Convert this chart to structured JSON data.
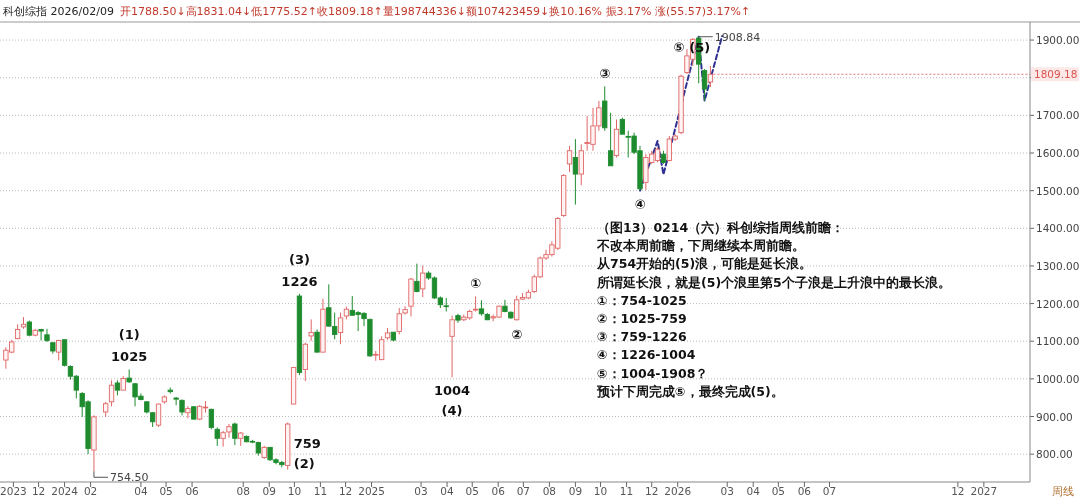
{
  "chart_data": {
    "type": "candlestick",
    "title": "科创综指 2026/02/09",
    "subtitle": "开1788.50↓高1831.04↓低1775.52↑收1809.18↑量198744336↓额107423459↓换10.16% 振3.17% 涨(55.57)3.17%↑",
    "xlabel": "周线",
    "x": [
      "2023-10-23",
      "2023-10-30",
      "2023-11-06",
      "2023-11-13",
      "2023-11-20",
      "2023-11-27",
      "2023-12-04",
      "2023-12-11",
      "2023-12-18",
      "2023-12-25",
      "2024-01-01",
      "2024-01-08",
      "2024-01-15",
      "2024-01-22",
      "2024-01-29",
      "2024-02-05",
      "2024-02-19",
      "2024-02-26",
      "2024-03-04",
      "2024-03-11",
      "2024-03-18",
      "2024-03-25",
      "2024-04-01",
      "2024-04-08",
      "2024-04-15",
      "2024-04-22",
      "2024-04-29",
      "2024-05-06",
      "2024-05-13",
      "2024-05-20",
      "2024-05-27",
      "2024-06-03",
      "2024-06-10",
      "2024-06-17",
      "2024-06-24",
      "2024-07-01",
      "2024-07-08",
      "2024-07-15",
      "2024-07-22",
      "2024-07-29",
      "2024-08-05",
      "2024-08-12",
      "2024-08-19",
      "2024-08-26",
      "2024-09-02",
      "2024-09-09",
      "2024-09-16",
      "2024-09-23",
      "2024-09-30",
      "2024-10-07",
      "2024-10-14",
      "2024-10-21",
      "2024-10-28",
      "2024-11-04",
      "2024-11-11",
      "2024-11-18",
      "2024-11-25",
      "2024-12-02",
      "2024-12-09",
      "2024-12-16",
      "2024-12-23",
      "2024-12-30",
      "2025-01-06",
      "2025-01-13",
      "2025-01-20",
      "2025-01-27",
      "2025-02-03",
      "2025-02-10",
      "2025-02-17",
      "2025-02-24",
      "2025-03-03",
      "2025-03-10",
      "2025-03-17",
      "2025-03-24",
      "2025-03-31",
      "2025-04-07",
      "2025-04-14",
      "2025-04-21",
      "2025-04-28",
      "2025-05-05",
      "2025-05-12",
      "2025-05-19",
      "2025-05-26",
      "2025-06-02",
      "2025-06-09",
      "2025-06-16",
      "2025-06-23",
      "2025-06-30",
      "2025-07-07",
      "2025-07-14",
      "2025-07-21",
      "2025-07-28",
      "2025-08-04",
      "2025-08-11",
      "2025-08-18",
      "2025-08-25",
      "2025-09-01",
      "2025-09-08",
      "2025-09-15",
      "2025-09-22",
      "2025-09-29",
      "2025-10-06",
      "2025-10-13",
      "2025-10-20",
      "2025-10-27",
      "2025-11-03",
      "2025-11-10",
      "2025-11-17",
      "2025-11-24",
      "2025-12-01",
      "2025-12-08",
      "2025-12-15",
      "2025-12-22",
      "2025-12-29",
      "2026-01-05",
      "2026-01-12",
      "2026-01-19",
      "2026-01-26",
      "2026-02-02",
      "2026-02-09"
    ],
    "ohlc": [
      [
        1050,
        1084,
        1027,
        1076
      ],
      [
        1071,
        1104,
        1068,
        1098
      ],
      [
        1107,
        1145,
        1105,
        1131
      ],
      [
        1138,
        1164,
        1133,
        1145
      ],
      [
        1151,
        1155,
        1113,
        1116
      ],
      [
        1116,
        1133,
        1113,
        1129
      ],
      [
        1131,
        1133,
        1102,
        1127
      ],
      [
        1117,
        1133,
        1098,
        1102
      ],
      [
        1096,
        1098,
        1067,
        1074
      ],
      [
        1071,
        1104,
        1049,
        1102
      ],
      [
        1104,
        1104,
        1033,
        1036
      ],
      [
        1033,
        1036,
        998,
        1007
      ],
      [
        1007,
        1010,
        948,
        970
      ],
      [
        961,
        965,
        899,
        926
      ],
      [
        939,
        943,
        800,
        815
      ],
      [
        811,
        903,
        754.5,
        899
      ],
      [
        912,
        939,
        899,
        934
      ],
      [
        939,
        996,
        927,
        983
      ],
      [
        989,
        996,
        956,
        970
      ],
      [
        970,
        1007,
        970,
        1001
      ],
      [
        1002,
        1025,
        989,
        992
      ],
      [
        987,
        989,
        927,
        952
      ],
      [
        954,
        961,
        943,
        945
      ],
      [
        939,
        941,
        908,
        912
      ],
      [
        910,
        912,
        872,
        886
      ],
      [
        877,
        934,
        872,
        933
      ],
      [
        939,
        956,
        934,
        952
      ],
      [
        970,
        977,
        961,
        966
      ],
      [
        949,
        952,
        930,
        946
      ],
      [
        943,
        945,
        903,
        912
      ],
      [
        910,
        927,
        895,
        921
      ],
      [
        926,
        927,
        892,
        893
      ],
      [
        893,
        930,
        890,
        927
      ],
      [
        923,
        941,
        910,
        925
      ],
      [
        919,
        921,
        866,
        871
      ],
      [
        866,
        871,
        822,
        842
      ],
      [
        842,
        862,
        820,
        857
      ],
      [
        859,
        880,
        844,
        873
      ],
      [
        880,
        884,
        824,
        842
      ],
      [
        842,
        859,
        822,
        856
      ],
      [
        847,
        850,
        831,
        833
      ],
      [
        834,
        838,
        829,
        832
      ],
      [
        831,
        833,
        796,
        803
      ],
      [
        791,
        822,
        787,
        818
      ],
      [
        818,
        819,
        782,
        785
      ],
      [
        785,
        789,
        773,
        778
      ],
      [
        778,
        782,
        765,
        772
      ],
      [
        770,
        884,
        759,
        880
      ],
      [
        933,
        1032,
        933,
        1030
      ],
      [
        1220,
        1226,
        1010,
        1017
      ],
      [
        1025,
        1096,
        994,
        1092
      ],
      [
        1114,
        1158,
        1101,
        1123
      ],
      [
        1124,
        1131,
        1070,
        1071
      ],
      [
        1071,
        1213,
        1070,
        1185
      ],
      [
        1189,
        1251,
        1139,
        1140
      ],
      [
        1139,
        1176,
        1105,
        1118
      ],
      [
        1123,
        1176,
        1092,
        1162
      ],
      [
        1167,
        1192,
        1158,
        1185
      ],
      [
        1182,
        1220,
        1167,
        1169
      ],
      [
        1176,
        1180,
        1127,
        1171
      ],
      [
        1174,
        1177,
        1140,
        1160
      ],
      [
        1158,
        1160,
        1059,
        1061
      ],
      [
        1063,
        1074,
        1048,
        1065
      ],
      [
        1051,
        1113,
        1050,
        1104
      ],
      [
        1109,
        1135,
        1104,
        1122
      ],
      [
        1124,
        1124,
        1100,
        1103
      ],
      [
        1126,
        1188,
        1118,
        1173
      ],
      [
        1175,
        1193,
        1171,
        1184
      ],
      [
        1193,
        1268,
        1166,
        1265
      ],
      [
        1259,
        1306,
        1230,
        1232
      ],
      [
        1239,
        1301,
        1217,
        1281
      ],
      [
        1281,
        1286,
        1263,
        1268
      ],
      [
        1268,
        1272,
        1212,
        1215
      ],
      [
        1215,
        1219,
        1188,
        1197
      ],
      [
        1194,
        1215,
        1179,
        1192
      ],
      [
        1113,
        1168,
        1004,
        1157
      ],
      [
        1168,
        1173,
        1149,
        1156
      ],
      [
        1157,
        1171,
        1153,
        1164
      ],
      [
        1162,
        1184,
        1157,
        1179
      ],
      [
        1183,
        1219,
        1179,
        1185
      ],
      [
        1186,
        1209,
        1168,
        1173
      ],
      [
        1171,
        1175,
        1156,
        1157
      ],
      [
        1162,
        1171,
        1153,
        1165
      ],
      [
        1164,
        1195,
        1162,
        1193
      ],
      [
        1193,
        1210,
        1177,
        1179
      ],
      [
        1177,
        1179,
        1159,
        1162
      ],
      [
        1157,
        1221,
        1155,
        1210
      ],
      [
        1212,
        1228,
        1210,
        1216
      ],
      [
        1215,
        1237,
        1212,
        1230
      ],
      [
        1232,
        1277,
        1228,
        1271
      ],
      [
        1271,
        1325,
        1268,
        1321
      ],
      [
        1321,
        1343,
        1316,
        1330
      ],
      [
        1330,
        1365,
        1325,
        1356
      ],
      [
        1347,
        1430,
        1342,
        1426
      ],
      [
        1434,
        1544,
        1430,
        1540
      ],
      [
        1571,
        1619,
        1549,
        1606
      ],
      [
        1588,
        1637,
        1463,
        1544
      ],
      [
        1544,
        1623,
        1514,
        1606
      ],
      [
        1625,
        1698,
        1606,
        1628
      ],
      [
        1623,
        1720,
        1606,
        1672
      ],
      [
        1672,
        1738,
        1659,
        1720
      ],
      [
        1738,
        1777,
        1659,
        1667
      ],
      [
        1606,
        1707,
        1566,
        1566
      ],
      [
        1593,
        1689,
        1588,
        1663
      ],
      [
        1689,
        1694,
        1650,
        1650
      ],
      [
        1644,
        1659,
        1588,
        1642
      ],
      [
        1645,
        1654,
        1597,
        1602
      ],
      [
        1606,
        1619,
        1500,
        1505
      ],
      [
        1522,
        1597,
        1502,
        1588
      ],
      [
        1575,
        1606,
        1571,
        1597
      ],
      [
        1580,
        1615,
        1575,
        1610
      ],
      [
        1597,
        1606,
        1571,
        1575
      ],
      [
        1580,
        1645,
        1578,
        1637
      ],
      [
        1637,
        1650,
        1632,
        1645
      ],
      [
        1654,
        1808,
        1650,
        1804
      ],
      [
        1814,
        1876,
        1810,
        1858
      ],
      [
        1849,
        1905,
        1832,
        1902
      ],
      [
        1905,
        1908.84,
        1785,
        1836
      ],
      [
        1819,
        1823,
        1739,
        1770
      ],
      [
        1788.5,
        1831.04,
        1775.52,
        1809.18
      ]
    ],
    "series": [
      {
        "type": "line",
        "x": [
          "2025-11-17",
          "2025-12-08",
          "2025-12-15",
          "2026-01-26",
          "2026-02-02",
          "2026-02-23"
        ],
        "values": [
          1500,
          1632,
          1543,
          1909,
          1739,
          1911
        ],
        "color": "#2e3192",
        "line_style": "dashed"
      }
    ],
    "xlim": [
      "2023-10-16",
      "2027-02-25"
    ],
    "xticks": [
      {
        "value": "2023-11-01",
        "label": "2023"
      },
      {
        "value": "2023-12-01",
        "label": "12"
      },
      {
        "value": "2024-01-01",
        "label": "2024"
      },
      {
        "value": "2024-02-01",
        "label": "02"
      },
      {
        "value": "2024-04-01",
        "label": "04"
      },
      {
        "value": "2024-05-01",
        "label": "05"
      },
      {
        "value": "2024-06-01",
        "label": "06"
      },
      {
        "value": "2024-08-01",
        "label": "08"
      },
      {
        "value": "2024-09-01",
        "label": "09"
      },
      {
        "value": "2024-10-01",
        "label": "10"
      },
      {
        "value": "2024-11-01",
        "label": "11"
      },
      {
        "value": "2024-12-01",
        "label": "12"
      },
      {
        "value": "2025-01-01",
        "label": "2025"
      },
      {
        "value": "2025-03-01",
        "label": "03"
      },
      {
        "value": "2025-04-01",
        "label": "04"
      },
      {
        "value": "2025-05-01",
        "label": "05"
      },
      {
        "value": "2025-06-01",
        "label": "06"
      },
      {
        "value": "2025-07-01",
        "label": "07"
      },
      {
        "value": "2025-08-01",
        "label": "08"
      },
      {
        "value": "2025-09-01",
        "label": "09"
      },
      {
        "value": "2025-10-01",
        "label": "10"
      },
      {
        "value": "2025-11-01",
        "label": "11"
      },
      {
        "value": "2025-12-01",
        "label": "12"
      },
      {
        "value": "2026-01-01",
        "label": "2026"
      },
      {
        "value": "2026-03-01",
        "label": "03"
      },
      {
        "value": "2026-04-01",
        "label": "04"
      },
      {
        "value": "2026-05-01",
        "label": "05"
      },
      {
        "value": "2026-06-01",
        "label": "06"
      },
      {
        "value": "2026-07-01",
        "label": "07"
      },
      {
        "value": "2026-12-01",
        "label": "12"
      },
      {
        "value": "2027-01-01",
        "label": "2027"
      }
    ],
    "ylim": [
      726,
      1948
    ],
    "yticks": [
      {
        "value": 800,
        "label": "800.00"
      },
      {
        "value": 900,
        "label": "900.00"
      },
      {
        "value": 1000,
        "label": "1000.00"
      },
      {
        "value": 1100,
        "label": "1100.00"
      },
      {
        "value": 1200,
        "label": "1200.00"
      },
      {
        "value": 1300,
        "label": "1300.00"
      },
      {
        "value": 1400,
        "label": "1400.00"
      },
      {
        "value": 1500,
        "label": "1500.00"
      },
      {
        "value": 1600,
        "label": "1600.00"
      },
      {
        "value": 1700,
        "label": "1700.00"
      },
      {
        "value": 1800,
        "label": null
      },
      {
        "value": 1900,
        "label": "1900.00"
      }
    ],
    "grid": "y",
    "annotations": [
      {
        "text": "754.50",
        "x": "2024-02-05",
        "y": 754.5
      },
      {
        "text": "1908.84",
        "x": "2026-01-26",
        "y": 1908.84
      },
      {
        "text": "1809.18",
        "x": "2026-02-09",
        "y": 1809.18
      },
      {
        "text": "1025",
        "x": "2024-03-18",
        "y": 1025
      },
      {
        "text": "(1)",
        "x": "2024-03-18",
        "y": 1025
      },
      {
        "text": "759",
        "x": "2024-09-23",
        "y": 759
      },
      {
        "text": "(2)",
        "x": "2024-09-23",
        "y": 759
      },
      {
        "text": "1226",
        "x": "2024-10-07",
        "y": 1226
      },
      {
        "text": "(3)",
        "x": "2024-10-07",
        "y": 1226
      },
      {
        "text": "1004",
        "x": "2025-04-07",
        "y": 1004
      },
      {
        "text": "(4)",
        "x": "2025-04-07",
        "y": 1004
      },
      {
        "text": "①",
        "x": "2025-05-05",
        "y": 1219
      },
      {
        "text": "②",
        "x": "2025-06-23",
        "y": 1155
      },
      {
        "text": "③",
        "x": "2025-10-06",
        "y": 1777
      },
      {
        "text": "④",
        "x": "2025-11-17",
        "y": 1500
      },
      {
        "text": "(5)",
        "x": "2026-02-23",
        "y": 1911
      },
      {
        "text": "⑤",
        "x": "2026-02-23",
        "y": 1911
      },
      "（图13）0214（六）科创综指周线前瞻：",
      "不改本周前瞻，下周继续本周前瞻。",
      "从754开始的(5)浪，可能是延长浪。",
      "所谓延长浪，就是(5)个浪里第5个子浪是上升浪中的最长浪。",
      "①：754-1025",
      "②：1025-759",
      "③：759-1226",
      "④：1226-1004",
      "⑤：1004-1908？",
      "预计下周完成⑤，最终完成(5)。"
    ]
  }
}
